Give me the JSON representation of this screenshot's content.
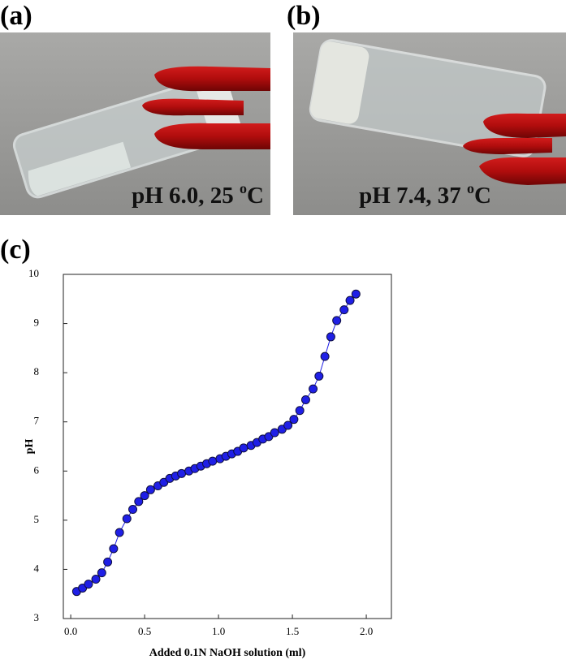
{
  "panels": [
    {
      "label": "(a)",
      "caption": [
        "pH 6.0, 25 ",
        "o",
        "C"
      ]
    },
    {
      "label": "(b)",
      "caption": [
        "pH 7.4, 37 ",
        "o",
        "C"
      ]
    }
  ],
  "chart_label": "(c)",
  "chart_data": {
    "type": "scatter",
    "xlabel": "Added 0.1N NaOH solution (ml)",
    "ylabel": "pH",
    "xlim": [
      -0.05,
      2.17
    ],
    "ylim": [
      3,
      10
    ],
    "xticks": [
      {
        "value": 0,
        "label": "0.0"
      },
      0.5,
      {
        "value": 1,
        "label": "1.0"
      },
      1.5,
      {
        "value": 2,
        "label": "2.0"
      }
    ],
    "yticks": [
      3,
      4,
      5,
      6,
      7,
      8,
      9,
      10
    ],
    "series": [
      {
        "color": "#1f1fe6",
        "x": [
          0.04,
          0.08,
          0.12,
          0.17,
          0.21,
          0.25,
          0.29,
          0.33,
          0.38,
          0.42,
          0.46,
          0.5,
          0.54,
          0.59,
          0.63,
          0.67,
          0.71,
          0.75,
          0.8,
          0.84,
          0.88,
          0.92,
          0.96,
          1.01,
          1.05,
          1.09,
          1.13,
          1.17,
          1.22,
          1.26,
          1.3,
          1.34,
          1.38,
          1.43,
          1.47,
          1.51,
          1.55,
          1.59,
          1.64,
          1.68,
          1.72,
          1.76,
          1.8,
          1.85,
          1.89,
          1.93
        ],
        "values": [
          3.55,
          3.62,
          3.7,
          3.8,
          3.93,
          4.15,
          4.42,
          4.75,
          5.03,
          5.22,
          5.38,
          5.5,
          5.62,
          5.7,
          5.77,
          5.85,
          5.9,
          5.95,
          6.0,
          6.05,
          6.1,
          6.15,
          6.2,
          6.25,
          6.3,
          6.35,
          6.4,
          6.47,
          6.52,
          6.58,
          6.65,
          6.7,
          6.78,
          6.85,
          6.93,
          7.05,
          7.23,
          7.45,
          7.67,
          7.93,
          8.33,
          8.73,
          9.06,
          9.28,
          9.47,
          9.6
        ]
      }
    ]
  }
}
